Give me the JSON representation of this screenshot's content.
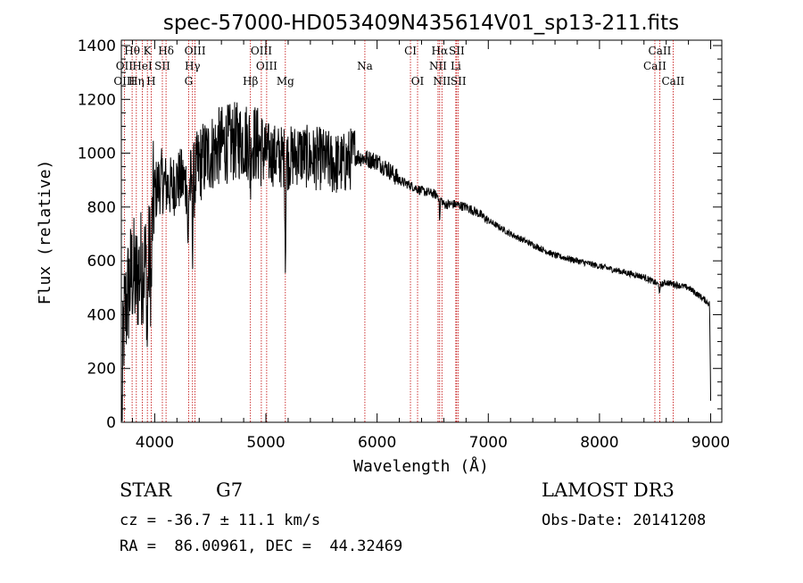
{
  "chart_data": {
    "type": "line",
    "title": "spec-57000-HD053409N435614V01_sp13-211.fits",
    "xlabel": "Wavelength (Å)",
    "ylabel": "Flux (relative)",
    "xlim": [
      3700,
      9100
    ],
    "ylim": [
      0,
      1420
    ],
    "xticks": [
      4000,
      5000,
      6000,
      7000,
      8000,
      9000
    ],
    "yticks": [
      0,
      200,
      400,
      600,
      800,
      1000,
      1200,
      1400
    ],
    "series": [
      {
        "name": "spectrum",
        "anchors_x": [
          3705,
          3720,
          3740,
          3760,
          3780,
          3800,
          3830,
          3860,
          3900,
          3930,
          3960,
          3990,
          4030,
          4060,
          4100,
          4150,
          4200,
          4250,
          4300,
          4340,
          4400,
          4500,
          4600,
          4700,
          4800,
          4900,
          5000,
          5100,
          5200,
          5300,
          5400,
          5500,
          5600,
          5700,
          5800,
          5900,
          6000,
          6100,
          6200,
          6300,
          6400,
          6500,
          6560,
          6600,
          6700,
          6800,
          6900,
          7000,
          7200,
          7400,
          7600,
          7800,
          8000,
          8200,
          8400,
          8540,
          8600,
          8700,
          8800,
          8900,
          8960,
          8990,
          9000
        ],
        "anchors_y": [
          30,
          350,
          420,
          480,
          520,
          560,
          520,
          560,
          600,
          560,
          620,
          840,
          880,
          900,
          880,
          870,
          900,
          900,
          880,
          880,
          960,
          1000,
          1030,
          1040,
          1050,
          1040,
          1000,
          990,
          980,
          1000,
          980,
          980,
          960,
          960,
          990,
          980,
          970,
          940,
          900,
          880,
          860,
          850,
          840,
          810,
          810,
          800,
          780,
          750,
          700,
          660,
          620,
          600,
          580,
          560,
          540,
          510,
          520,
          510,
          500,
          470,
          450,
          440,
          80
        ],
        "noise_bands": [
          {
            "from": 3700,
            "to": 4000,
            "amplitude": 230
          },
          {
            "from": 4000,
            "to": 4300,
            "amplitude": 120
          },
          {
            "from": 4300,
            "to": 5000,
            "amplitude": 150
          },
          {
            "from": 5000,
            "to": 5800,
            "amplitude": 120
          },
          {
            "from": 5800,
            "to": 6200,
            "amplitude": 35
          },
          {
            "from": 6200,
            "to": 7000,
            "amplitude": 18
          },
          {
            "from": 7000,
            "to": 9000,
            "amplitude": 12
          }
        ],
        "absorption": [
          {
            "x": 3934,
            "depth": 300
          },
          {
            "x": 3969,
            "depth": 250
          },
          {
            "x": 4300,
            "depth": 300
          },
          {
            "x": 4340,
            "depth": 200
          },
          {
            "x": 4861,
            "depth": 180
          },
          {
            "x": 5175,
            "depth": 400
          },
          {
            "x": 6563,
            "depth": 100
          },
          {
            "x": 8542,
            "depth": 40
          }
        ]
      }
    ],
    "lines": [
      {
        "label": "Hθ",
        "x": 3797,
        "row": 0
      },
      {
        "label": "K",
        "x": 3934,
        "row": 0
      },
      {
        "label": "Hδ",
        "x": 4102,
        "row": 0
      },
      {
        "label": "OIII",
        "x": 4363,
        "row": 0
      },
      {
        "label": "OIII",
        "x": 4959,
        "row": 0
      },
      {
        "label": "CI",
        "x": 6300,
        "row": 0
      },
      {
        "label": "Hα",
        "x": 6563,
        "row": 0
      },
      {
        "label": "SII",
        "x": 6716,
        "row": 0
      },
      {
        "label": "CaII",
        "x": 8542,
        "row": 0
      },
      {
        "label": "OII",
        "x": 3727,
        "row": 1
      },
      {
        "label": "HeI",
        "x": 3889,
        "row": 1
      },
      {
        "label": "SII",
        "x": 4069,
        "row": 1
      },
      {
        "label": "Hγ",
        "x": 4340,
        "row": 1
      },
      {
        "label": "OIII",
        "x": 5007,
        "row": 1
      },
      {
        "label": "Na",
        "x": 5890,
        "row": 1
      },
      {
        "label": "NII",
        "x": 6548,
        "row": 1
      },
      {
        "label": "Li",
        "x": 6708,
        "row": 1
      },
      {
        "label": "CaII",
        "x": 8498,
        "row": 1
      },
      {
        "label": "OIII",
        "x": 3727,
        "row": 2
      },
      {
        "label": "Hη",
        "x": 3835,
        "row": 2
      },
      {
        "label": "H",
        "x": 3968,
        "row": 2
      },
      {
        "label": "G",
        "x": 4305,
        "row": 2
      },
      {
        "label": "Hβ",
        "x": 4861,
        "row": 2
      },
      {
        "label": "Mg",
        "x": 5175,
        "row": 2
      },
      {
        "label": "OI",
        "x": 6364,
        "row": 2
      },
      {
        "label": "NII",
        "x": 6583,
        "row": 2
      },
      {
        "label": "SII",
        "x": 6731,
        "row": 2
      },
      {
        "label": "CaII",
        "x": 8662,
        "row": 2
      }
    ]
  },
  "footer": {
    "object_class": "STAR",
    "subclass": "G7",
    "survey": "LAMOST DR3",
    "redshift": "cz = -36.7 ± 11.1 km/s",
    "obs_date": "Obs-Date: 20141208",
    "coords": "RA =  86.00961, DEC =  44.32469"
  },
  "colors": {
    "spectrum": "#000000",
    "line_markers": "#c00000",
    "axes": "#000000"
  }
}
